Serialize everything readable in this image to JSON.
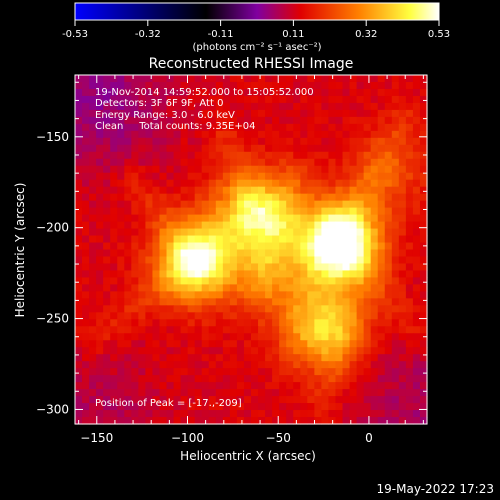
{
  "chart_data": {
    "type": "heatmap",
    "title": "Reconstructed RHESSI Image",
    "xlabel": "Heliocentric X (arcsec)",
    "ylabel": "Heliocentric Y (arcsec)",
    "xlim": [
      -162,
      32
    ],
    "ylim": [
      -308,
      -116
    ],
    "xticks": [
      -150,
      -100,
      -50,
      0
    ],
    "yticks": [
      -150,
      -200,
      -250,
      -300
    ],
    "colorbar": {
      "min": -0.53,
      "max": 0.53,
      "ticks": [
        "-0.53",
        "-0.32",
        "-0.11",
        "0.11",
        "0.32",
        "0.53"
      ],
      "label": "(photons cm⁻² s⁻¹ asec⁻²)",
      "colormap": [
        "#0000ff",
        "#000000",
        "#8000a0",
        "#e00000",
        "#ff8000",
        "#ffff40",
        "#ffffff"
      ]
    },
    "annotations": {
      "time_range": "19-Nov-2014 14:59:52.000 to 15:05:52.000",
      "detectors": "Detectors: 3F 6F 9F, Att 0",
      "energy": "Energy Range: 3.0 - 6.0 keV",
      "clean": "Clean     Total counts: 9.35E+04",
      "peak": "Position of Peak = [-17.,-209]"
    },
    "sources": [
      {
        "x": -17,
        "y": -209,
        "peak": 0.53
      },
      {
        "x": -95,
        "y": -218,
        "peak": 0.42
      },
      {
        "x": -62,
        "y": -192,
        "peak": 0.36
      },
      {
        "x": -26,
        "y": -255,
        "peak": 0.34
      },
      {
        "x": -55,
        "y": -225,
        "peak": 0.18
      },
      {
        "x": 10,
        "y": -170,
        "peak": 0.16
      }
    ]
  },
  "footer": {
    "date": "19-May-2022 17:23"
  }
}
